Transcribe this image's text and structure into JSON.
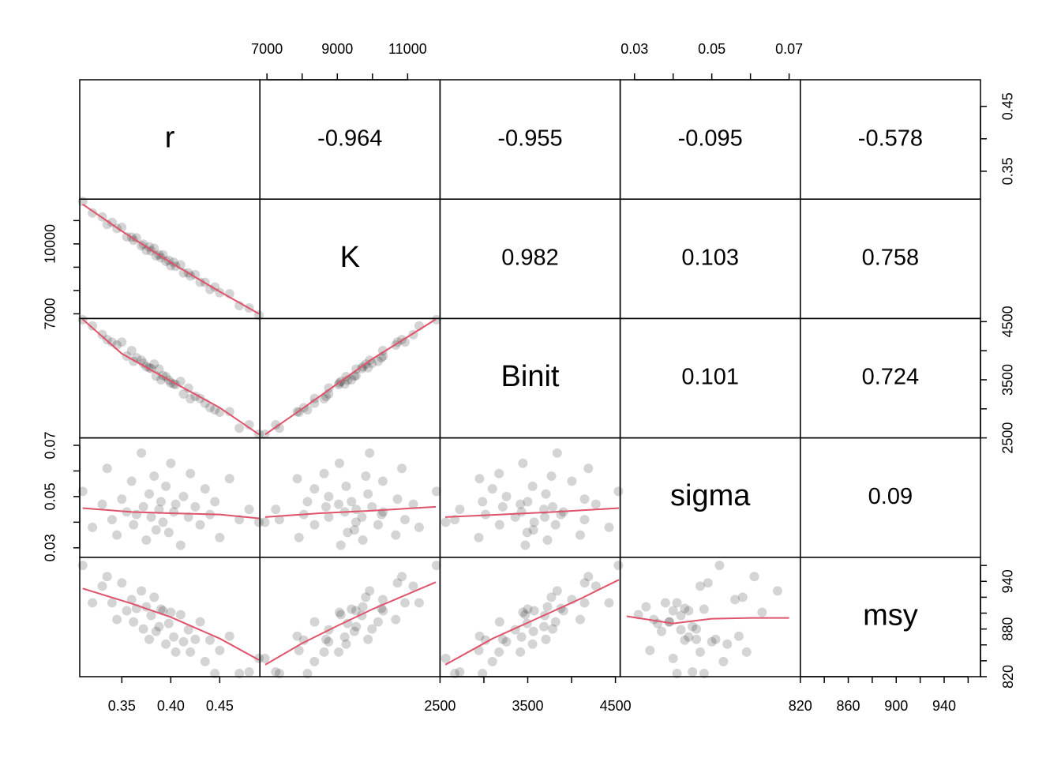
{
  "chart_data": {
    "type": "scatter-matrix",
    "variables": [
      "r",
      "K",
      "Binit",
      "sigma",
      "msy"
    ],
    "data": {
      "r": [
        0.31,
        0.32,
        0.33,
        0.335,
        0.34,
        0.345,
        0.35,
        0.355,
        0.36,
        0.362,
        0.365,
        0.37,
        0.372,
        0.375,
        0.378,
        0.38,
        0.383,
        0.385,
        0.388,
        0.39,
        0.392,
        0.395,
        0.398,
        0.4,
        0.403,
        0.405,
        0.41,
        0.413,
        0.418,
        0.42,
        0.425,
        0.43,
        0.435,
        0.44,
        0.445,
        0.45,
        0.46,
        0.47,
        0.48,
        0.49
      ],
      "K": [
        11820,
        11327,
        11159,
        10835,
        10924,
        10662,
        10712,
        10302,
        10294,
        10159,
        10257,
        9920,
        9986,
        9725,
        9873,
        9699,
        9809,
        9486,
        9536,
        9403,
        9530,
        9251,
        9292,
        9060,
        9212,
        9039,
        9101,
        8754,
        8756,
        8625,
        8679,
        8354,
        8349,
        8046,
        8152,
        7910,
        7860,
        7353,
        7249,
        6940
      ],
      "Binit": [
        4534,
        4427,
        4277,
        4191,
        4148,
        4098,
        4149,
        3907,
        4003,
        3817,
        3878,
        3836,
        3784,
        3725,
        3707,
        3694,
        3770,
        3564,
        3685,
        3499,
        3573,
        3555,
        3493,
        3445,
        3429,
        3416,
        3472,
        3257,
        3358,
        3173,
        3215,
        3179,
        3097,
        3019,
        2984,
        2942,
        2951,
        2668,
        2725,
        2565
      ],
      "sigma": [
        0.052,
        0.038,
        0.047,
        0.061,
        0.041,
        0.035,
        0.049,
        0.044,
        0.056,
        0.039,
        0.043,
        0.067,
        0.046,
        0.033,
        0.051,
        0.042,
        0.058,
        0.037,
        0.045,
        0.048,
        0.04,
        0.054,
        0.036,
        0.063,
        0.044,
        0.047,
        0.031,
        0.05,
        0.042,
        0.059,
        0.046,
        0.039,
        0.053,
        0.043,
        0.048,
        0.034,
        0.057,
        0.041,
        0.045,
        0.04
      ],
      "msy": [
        960,
        913,
        934,
        946,
        913,
        892,
        938,
        903,
        917,
        889,
        906,
        928,
        880,
        908,
        867,
        897,
        920,
        877,
        883,
        905,
        903,
        861,
        887,
        901,
        870,
        851,
        898,
        864,
        879,
        851,
        867,
        889,
        839,
        866,
        824,
        853,
        871,
        824,
        826,
        843
      ]
    },
    "correlations": [
      [
        -0.964,
        -0.955,
        -0.095,
        -0.578
      ],
      [
        0.982,
        0.103,
        0.758
      ],
      [
        0.101,
        0.724
      ],
      [
        0.09
      ]
    ],
    "smooth_color": "#df536b",
    "point_color": "#000000",
    "smooth": [
      [
        {
          "x": [
            0.31,
            0.35,
            0.4,
            0.45,
            0.49
          ],
          "y": [
            11700,
            10550,
            9200,
            7950,
            7000
          ]
        }
      ],
      [
        {
          "x": [
            0.31,
            0.35,
            0.4,
            0.45,
            0.49
          ],
          "y": [
            4540,
            3950,
            3480,
            3020,
            2560
          ]
        },
        {
          "x": [
            6950,
            8000,
            9000,
            10000,
            11800
          ],
          "y": [
            2560,
            3000,
            3430,
            3860,
            4540
          ]
        }
      ],
      [
        {
          "x": [
            0.31,
            0.36,
            0.4,
            0.45,
            0.49
          ],
          "y": [
            0.0455,
            0.044,
            0.0435,
            0.043,
            0.0415
          ]
        },
        {
          "x": [
            6950,
            8500,
            10000,
            11800
          ],
          "y": [
            0.042,
            0.0435,
            0.0445,
            0.046
          ]
        },
        {
          "x": [
            2560,
            3200,
            3800,
            4540
          ],
          "y": [
            0.042,
            0.043,
            0.044,
            0.0455
          ]
        }
      ],
      [
        {
          "x": [
            0.31,
            0.36,
            0.4,
            0.45,
            0.49
          ],
          "y": [
            931,
            912,
            895,
            868,
            841
          ]
        },
        {
          "x": [
            6950,
            8000,
            9000,
            10000,
            11800
          ],
          "y": [
            835,
            862,
            884,
            905,
            939
          ]
        },
        {
          "x": [
            2560,
            3100,
            3600,
            4100,
            4540
          ],
          "y": [
            835,
            868,
            893,
            918,
            942
          ]
        },
        {
          "x": [
            0.028,
            0.04,
            0.05,
            0.06,
            0.07
          ],
          "y": [
            896,
            887,
            893,
            894,
            894
          ]
        }
      ]
    ],
    "axes": {
      "r": {
        "lim": [
          0.307,
          0.491
        ],
        "bottom": {
          "ticks": [
            0.35,
            {
              "value": 0.4,
              "label": "0.40"
            },
            0.45
          ],
          "minor": []
        },
        "right": {
          "ticks": [
            0.35,
            0.45
          ],
          "minor": [
            0.4
          ]
        }
      },
      "K": {
        "lim": [
          6798,
          11921
        ],
        "top": {
          "ticks": [
            7000,
            9000,
            11000
          ],
          "minor": [
            8000,
            10000
          ]
        },
        "left": {
          "ticks": [
            7000,
            10000
          ],
          "minor": [
            8000,
            9000,
            11000
          ]
        }
      },
      "Binit": {
        "lim": [
          2500,
          4554
        ],
        "bottom": {
          "ticks": [
            2500,
            3500,
            4500
          ],
          "minor": [
            3000,
            4000
          ]
        },
        "right": {
          "ticks": [
            2500,
            3500,
            4500
          ],
          "minor": [
            3000,
            4000
          ]
        }
      },
      "sigma": {
        "lim": [
          0.0263,
          0.0729
        ],
        "top": {
          "ticks": [
            0.03,
            0.05,
            0.07
          ],
          "minor": [
            0.04,
            0.06
          ]
        },
        "left": {
          "ticks": [
            0.03,
            0.05,
            0.07
          ],
          "minor": [
            0.04,
            0.06
          ]
        }
      },
      "msy": {
        "lim": [
          820,
          970.3
        ],
        "bottom": {
          "ticks": [
            820,
            860,
            900,
            940
          ],
          "minor": [
            840,
            880,
            920,
            960
          ]
        },
        "right": {
          "ticks": [
            820,
            880,
            940
          ],
          "minor": [
            840,
            860,
            900,
            920,
            960
          ]
        }
      }
    }
  }
}
